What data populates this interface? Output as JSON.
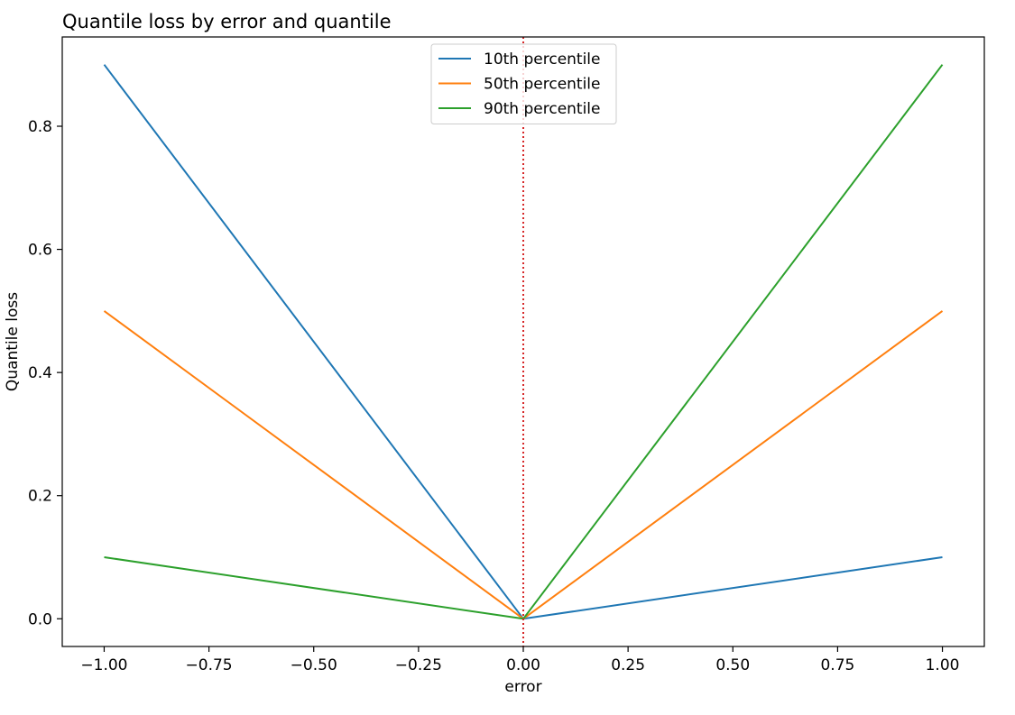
{
  "chart_data": {
    "type": "line",
    "title": "Quantile loss by error and quantile",
    "xlabel": "error",
    "ylabel": "Quantile loss",
    "xlim": [
      -1.1,
      1.1
    ],
    "ylim": [
      -0.045,
      0.945
    ],
    "x_ticks": [
      -1.0,
      -0.75,
      -0.5,
      -0.25,
      0.0,
      0.25,
      0.5,
      0.75,
      1.0
    ],
    "x_tick_labels": [
      "−1.00",
      "−0.75",
      "−0.50",
      "−0.25",
      "0.00",
      "0.25",
      "0.50",
      "0.75",
      "1.00"
    ],
    "y_ticks": [
      0.0,
      0.2,
      0.4,
      0.6,
      0.8
    ],
    "y_tick_labels": [
      "0.0",
      "0.2",
      "0.4",
      "0.6",
      "0.8"
    ],
    "grid": false,
    "legend_position": "top-center",
    "series": [
      {
        "name": "10th percentile",
        "color": "#1f77b4",
        "x": [
          -1.0,
          0.0,
          1.0
        ],
        "y": [
          0.9,
          0.0,
          0.1
        ]
      },
      {
        "name": "50th percentile",
        "color": "#ff7f0e",
        "x": [
          -1.0,
          0.0,
          1.0
        ],
        "y": [
          0.5,
          0.0,
          0.5
        ]
      },
      {
        "name": "90th percentile",
        "color": "#2ca02c",
        "x": [
          -1.0,
          0.0,
          1.0
        ],
        "y": [
          0.1,
          0.0,
          0.9
        ]
      }
    ],
    "reference_line": {
      "orientation": "vertical",
      "x": 0.0,
      "color": "#d62728",
      "style": "dotted"
    }
  }
}
